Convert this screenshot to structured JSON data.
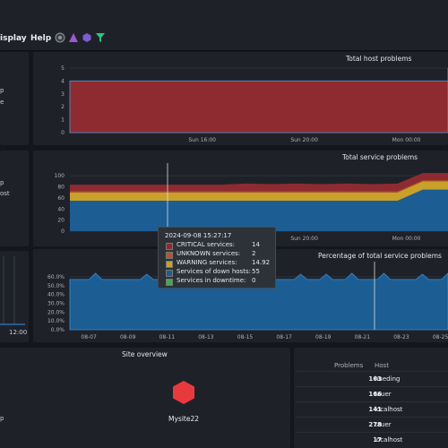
{
  "menu": {
    "display": "isplay",
    "help": "Help"
  },
  "toolbar_icons": [
    "status-icon",
    "warning-triangle-icon",
    "hexagon-icon",
    "filter-icon"
  ],
  "colors": {
    "critical": "#8e2b31",
    "unknown": "#b8542d",
    "warning": "#c9a12a",
    "down_hosts": "#1c5e93",
    "downtime": "#3fae49",
    "accent_red": "#e83a3d"
  },
  "panels": {
    "host_problems": {
      "title": "Total host problems",
      "side_labels": [
        "p",
        "e"
      ]
    },
    "service_problems": {
      "title": "Total service problems",
      "side_labels": [
        "p",
        "ost"
      ]
    },
    "percentage": {
      "title": "Percentage of total service problems"
    },
    "left_mini": {
      "time_label": "12:00"
    },
    "site_overview": {
      "title": "Site overview",
      "site_name": "Mysite22",
      "side_label": "p"
    },
    "host_table": {
      "col_problems": "Problems",
      "col_host": "Host",
      "rows": [
        {
          "problems": "163",
          "host": "hueding"
        },
        {
          "problems": "166",
          "host": "tauer"
        },
        {
          "problems": "141",
          "host": "localhost"
        },
        {
          "problems": "278",
          "host": "tauer"
        },
        {
          "problems": "17",
          "host": "localhost"
        }
      ]
    }
  },
  "tooltip": {
    "timestamp": "2024-09-08 15:27:17",
    "rows": [
      {
        "label": "CRITICAL services:",
        "value": "14"
      },
      {
        "label": "UNKNOWN services:",
        "value": "2"
      },
      {
        "label": "WARNING services:",
        "value": "14.92"
      },
      {
        "label": "Services of down hosts:",
        "value": "55"
      },
      {
        "label": "Services in downtime:",
        "value": "0"
      }
    ]
  },
  "chart_data": [
    {
      "type": "area",
      "title": "Total host problems",
      "x_ticks": [
        "Sun 16:00",
        "Sun 20:00",
        "Mon 00:00"
      ],
      "y_ticks": [
        0,
        1,
        2,
        3,
        4,
        5
      ],
      "ylim": [
        0,
        5
      ],
      "series": [
        {
          "values": [
            4,
            4,
            4,
            4,
            4,
            4,
            4,
            4,
            4,
            4,
            4,
            4,
            4,
            4,
            4,
            5
          ]
        }
      ]
    },
    {
      "type": "area",
      "title": "Total service problems",
      "x_ticks": [
        "Sun 16:00",
        "Sun 20:00",
        "Mon 00:00"
      ],
      "y_ticks": [
        0,
        20,
        40,
        60,
        80,
        100
      ],
      "ylim": [
        0,
        110
      ],
      "series": [
        {
          "name": "Services of down hosts",
          "values": [
            55,
            55,
            55,
            55,
            55,
            55,
            55,
            55,
            55,
            55,
            55,
            55,
            55,
            55,
            75,
            75
          ]
        },
        {
          "name": "WARNING services",
          "values": [
            15,
            15,
            15,
            15,
            15,
            15,
            15,
            15,
            15,
            15,
            15,
            15,
            15,
            15,
            15,
            15
          ]
        },
        {
          "name": "UNKNOWN services",
          "values": [
            2,
            2,
            2,
            2,
            2,
            2,
            2,
            2,
            2,
            2,
            2,
            2,
            2,
            2,
            2,
            2
          ]
        },
        {
          "name": "CRITICAL services",
          "values": [
            12,
            12,
            12,
            12,
            12,
            12,
            12,
            14,
            13,
            14,
            13,
            14,
            13,
            14,
            13,
            13
          ]
        }
      ]
    },
    {
      "type": "area",
      "title": "Percentage of total service problems",
      "x_ticks": [
        "08-07",
        "08-09",
        "08-11",
        "08-13",
        "08-15",
        "08-17",
        "08-19",
        "08-21",
        "08-23",
        "08-25"
      ],
      "y_ticks": [
        "60.0%",
        "50.0%",
        "40.0%",
        "30.0%",
        "20.0%",
        "10.0%",
        "0.0%"
      ],
      "ylim": [
        0,
        65
      ],
      "series": [
        {
          "values": [
            57,
            57,
            57,
            57,
            64,
            57,
            57,
            57,
            57,
            57,
            57,
            57,
            63,
            57,
            57,
            63,
            57,
            57,
            57,
            57,
            57,
            64,
            57,
            57,
            57,
            57,
            57,
            57,
            64,
            57,
            57,
            57,
            57,
            57,
            57,
            57,
            63,
            57,
            57,
            57,
            63,
            57,
            57,
            57,
            64,
            57,
            57,
            57,
            57,
            64,
            57,
            57,
            57,
            57,
            57,
            63,
            57,
            57,
            57,
            64
          ]
        }
      ]
    }
  ]
}
